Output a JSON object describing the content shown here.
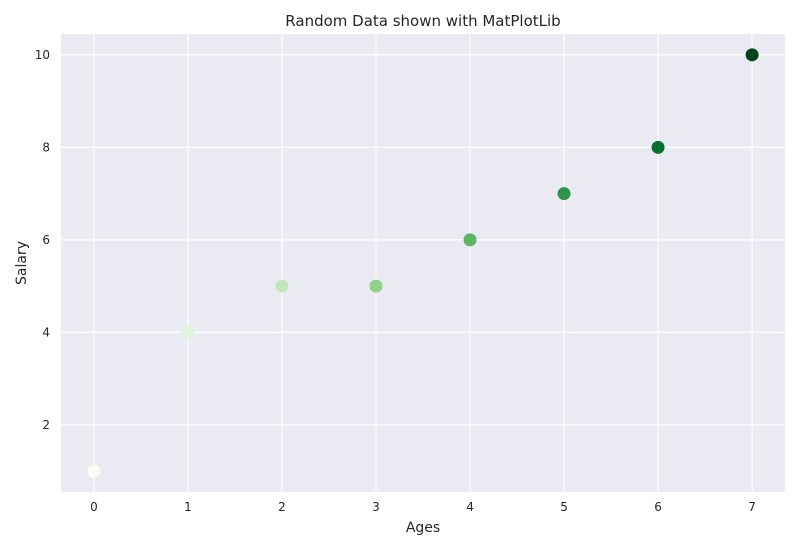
{
  "chart_data": {
    "type": "scatter",
    "title": "Random Data shown with MatPlotLib",
    "xlabel": "Ages",
    "ylabel": "Salary",
    "xlim": [
      -0.35,
      7.35
    ],
    "ylim": [
      0.55,
      10.45
    ],
    "xticks": [
      0,
      1,
      2,
      3,
      4,
      5,
      6,
      7
    ],
    "yticks": [
      2,
      4,
      6,
      8,
      10
    ],
    "grid": true,
    "legend": "none",
    "colormap": "Greens",
    "x": [
      0,
      1,
      2,
      3,
      4,
      5,
      6,
      7
    ],
    "y": [
      1,
      4,
      5,
      5,
      6,
      7,
      8,
      10
    ],
    "point_colors": [
      "#f7fcf5",
      "#e0f3db",
      "#c2e6bb",
      "#8fd08a",
      "#5bb563",
      "#2e9449",
      "#07702f",
      "#00441b"
    ]
  },
  "style": {
    "plot_background": "#eaeaf2",
    "grid_color": "#ffffff",
    "text_color": "#262626"
  }
}
